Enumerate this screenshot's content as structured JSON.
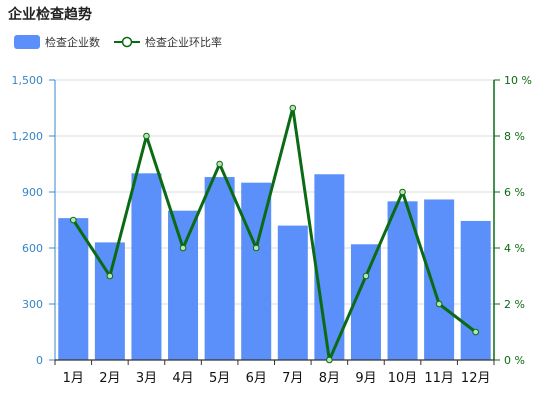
{
  "chart_data": {
    "type": "bar",
    "title": "企业检查趋势",
    "categories": [
      "1月",
      "2月",
      "3月",
      "4月",
      "5月",
      "6月",
      "7月",
      "8月",
      "9月",
      "10月",
      "11月",
      "12月"
    ],
    "series": [
      {
        "name": "检查企业数",
        "type": "bar",
        "axis": "left",
        "color": "#5b8ff9",
        "values": [
          760,
          630,
          1000,
          800,
          980,
          950,
          720,
          995,
          620,
          850,
          860,
          745
        ]
      },
      {
        "name": "检查企业环比率",
        "type": "line",
        "axis": "right",
        "color": "#0b6b14",
        "values": [
          5,
          3,
          8,
          4,
          7,
          4,
          9,
          0,
          3,
          6,
          2,
          1
        ]
      }
    ],
    "y_left": {
      "min": 0,
      "max": 1500,
      "ticks": [
        0,
        300,
        600,
        900,
        1200,
        1500
      ],
      "tick_labels": [
        "0",
        "300",
        "600",
        "900",
        "1,200",
        "1,500"
      ],
      "color": "#3a86c8"
    },
    "y_right": {
      "min": 0,
      "max": 10,
      "ticks": [
        0,
        2,
        4,
        6,
        8,
        10
      ],
      "tick_labels": [
        "0 %",
        "2 %",
        "4 %",
        "6 %",
        "8 %",
        "10 %"
      ],
      "color": "#0b6b14"
    },
    "grid": true,
    "legend_position": "top-left"
  }
}
